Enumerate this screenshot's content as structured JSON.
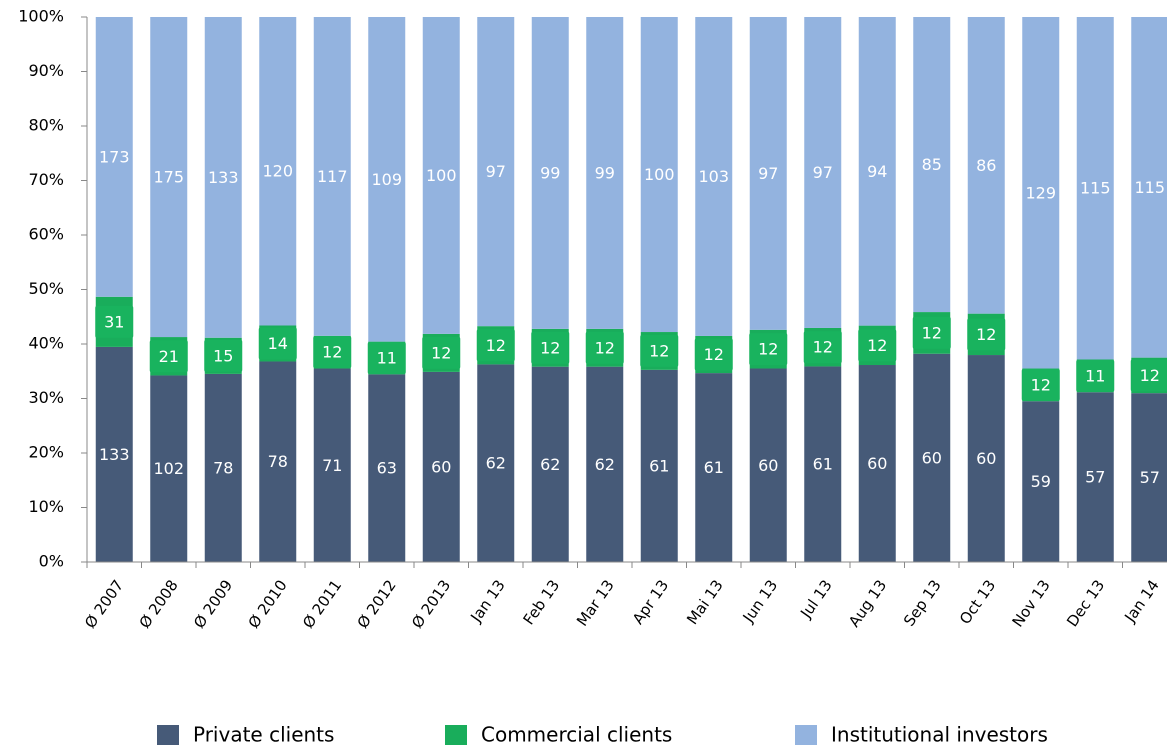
{
  "chart_data": {
    "type": "bar",
    "stacked": "percent",
    "categories": [
      "Ø 2007",
      "Ø 2008",
      "Ø 2009",
      "Ø 2010",
      "Ø 2011",
      "Ø 2012",
      "Ø 2013",
      "Jan 13",
      "Feb 13",
      "Mar 13",
      "Apr 13",
      "Mai 13",
      "Jun 13",
      "Jul 13",
      "Aug 13",
      "Sep 13",
      "Oct 13",
      "Nov 13",
      "Dec 13",
      "Jan 14"
    ],
    "series": [
      {
        "name": "Private clients",
        "color": "#465a78",
        "values": [
          133,
          102,
          78,
          78,
          71,
          63,
          60,
          62,
          62,
          62,
          61,
          61,
          60,
          61,
          60,
          60,
          60,
          59,
          57,
          57
        ]
      },
      {
        "name": "Commercial clients",
        "color": "#19ad5b",
        "values": [
          31,
          21,
          15,
          14,
          12,
          11,
          12,
          12,
          12,
          12,
          12,
          12,
          12,
          12,
          12,
          12,
          12,
          12,
          11,
          12
        ]
      },
      {
        "name": "Institutional investors",
        "color": "#93b3df",
        "values": [
          173,
          175,
          133,
          120,
          117,
          109,
          100,
          97,
          99,
          99,
          100,
          103,
          97,
          97,
          94,
          85,
          86,
          129,
          115,
          115
        ]
      }
    ],
    "ylim": [
      0,
      100
    ],
    "yticks": [
      {
        "value": 0,
        "label": "0%"
      },
      {
        "value": 10,
        "label": "10%"
      },
      {
        "value": 20,
        "label": "20%"
      },
      {
        "value": 30,
        "label": "30%"
      },
      {
        "value": 40,
        "label": "40%"
      },
      {
        "value": 50,
        "label": "50%"
      },
      {
        "value": 60,
        "label": "60%"
      },
      {
        "value": 70,
        "label": "70%"
      },
      {
        "value": 80,
        "label": "80%"
      },
      {
        "value": 90,
        "label": "90%"
      },
      {
        "value": 100,
        "label": "100%"
      }
    ],
    "grid": false,
    "legend": "bottom"
  }
}
